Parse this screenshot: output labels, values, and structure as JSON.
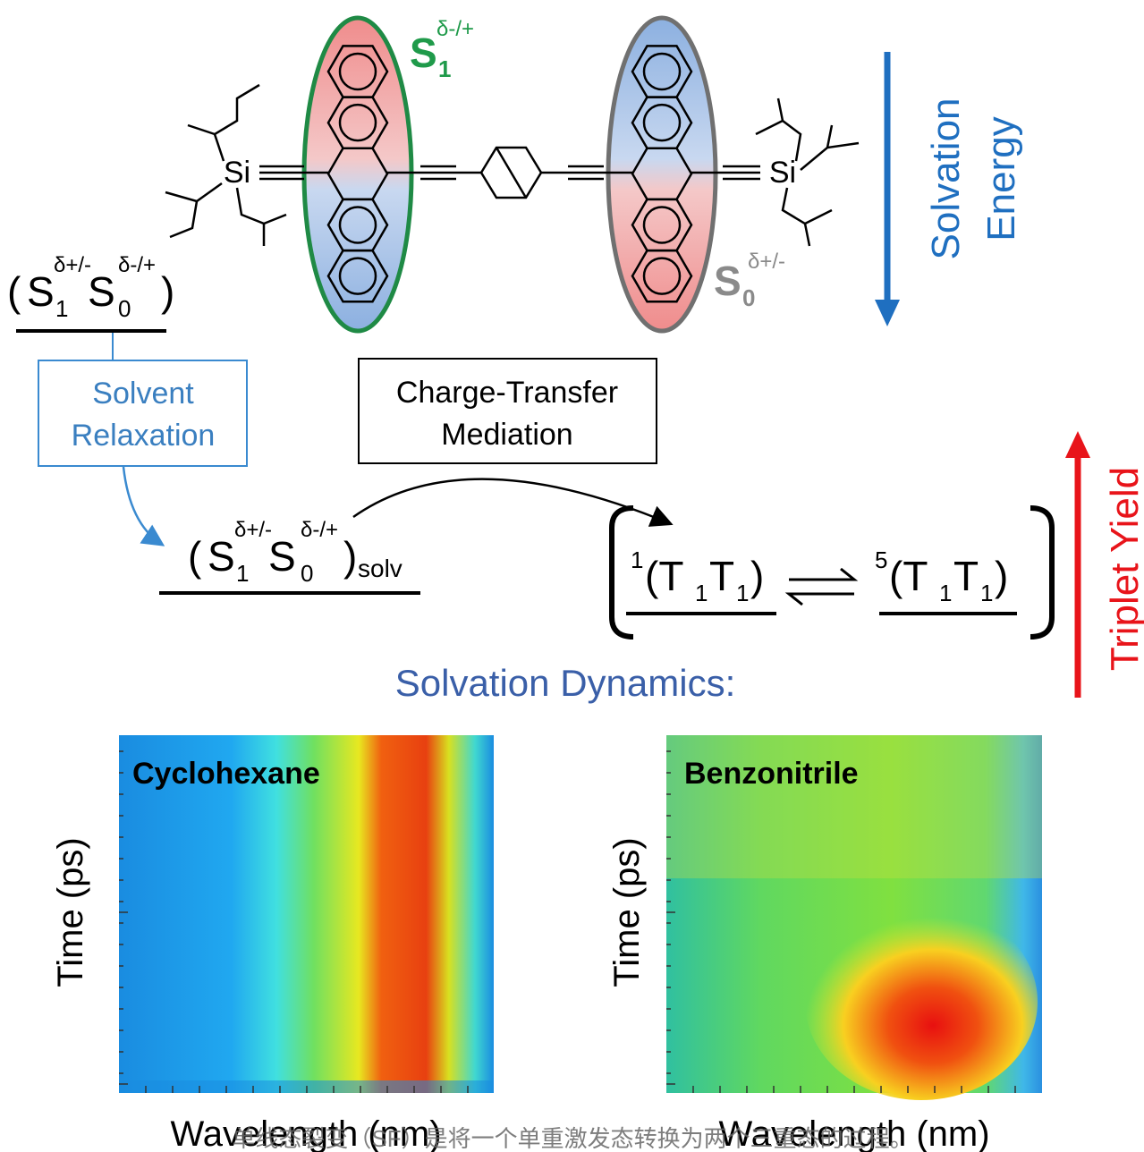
{
  "molecule": {
    "s1_label": {
      "base": "S",
      "sub": "1",
      "sup": "δ-/+"
    },
    "s0_label": {
      "base": "S",
      "sub": "0",
      "sup": "δ+/-"
    },
    "silicon": "Si"
  },
  "solvation_energy": {
    "label": [
      "Solvation",
      "Energy"
    ]
  },
  "initial_state": {
    "open": "(",
    "close": ")",
    "s1": {
      "base": "S",
      "sub": "1",
      "sup": "δ+/-"
    },
    "s0": {
      "base": "S",
      "sub": "0",
      "sup": "δ-/+"
    }
  },
  "solvent_relaxation": {
    "label": [
      "Solvent",
      "Relaxation"
    ]
  },
  "charge_transfer": {
    "label": [
      "Charge-Transfer",
      "Mediation"
    ]
  },
  "solvated_state": {
    "open": "(",
    "close": ")",
    "s1": {
      "base": "S",
      "sub": "1",
      "sup": "δ+/-"
    },
    "s0": {
      "base": "S",
      "sub": "0",
      "sup": "δ-/+"
    },
    "subscript": "solv"
  },
  "triplet_pairs": [
    {
      "multiplicity": "1",
      "open": "(T",
      "sub": "1",
      "mid": "T",
      "close": ")"
    },
    {
      "multiplicity": "5",
      "open": "(T",
      "sub": "1",
      "mid": "T",
      "close": ")"
    }
  ],
  "triplet_yield": {
    "label": "Triplet Yield"
  },
  "dynamics": {
    "title": "Solvation Dynamics:",
    "panels": [
      {
        "title": "Cyclohexane",
        "y_label": "Time (ps)",
        "x_label": "Wavelength (nm)"
      },
      {
        "title": "Benzonitrile",
        "y_label": "Time (ps)",
        "x_label": "Wavelength (nm)"
      }
    ]
  },
  "caption": "单线态裂变（SF）是将一个单重激发态转换为两个三重态的过程。"
}
